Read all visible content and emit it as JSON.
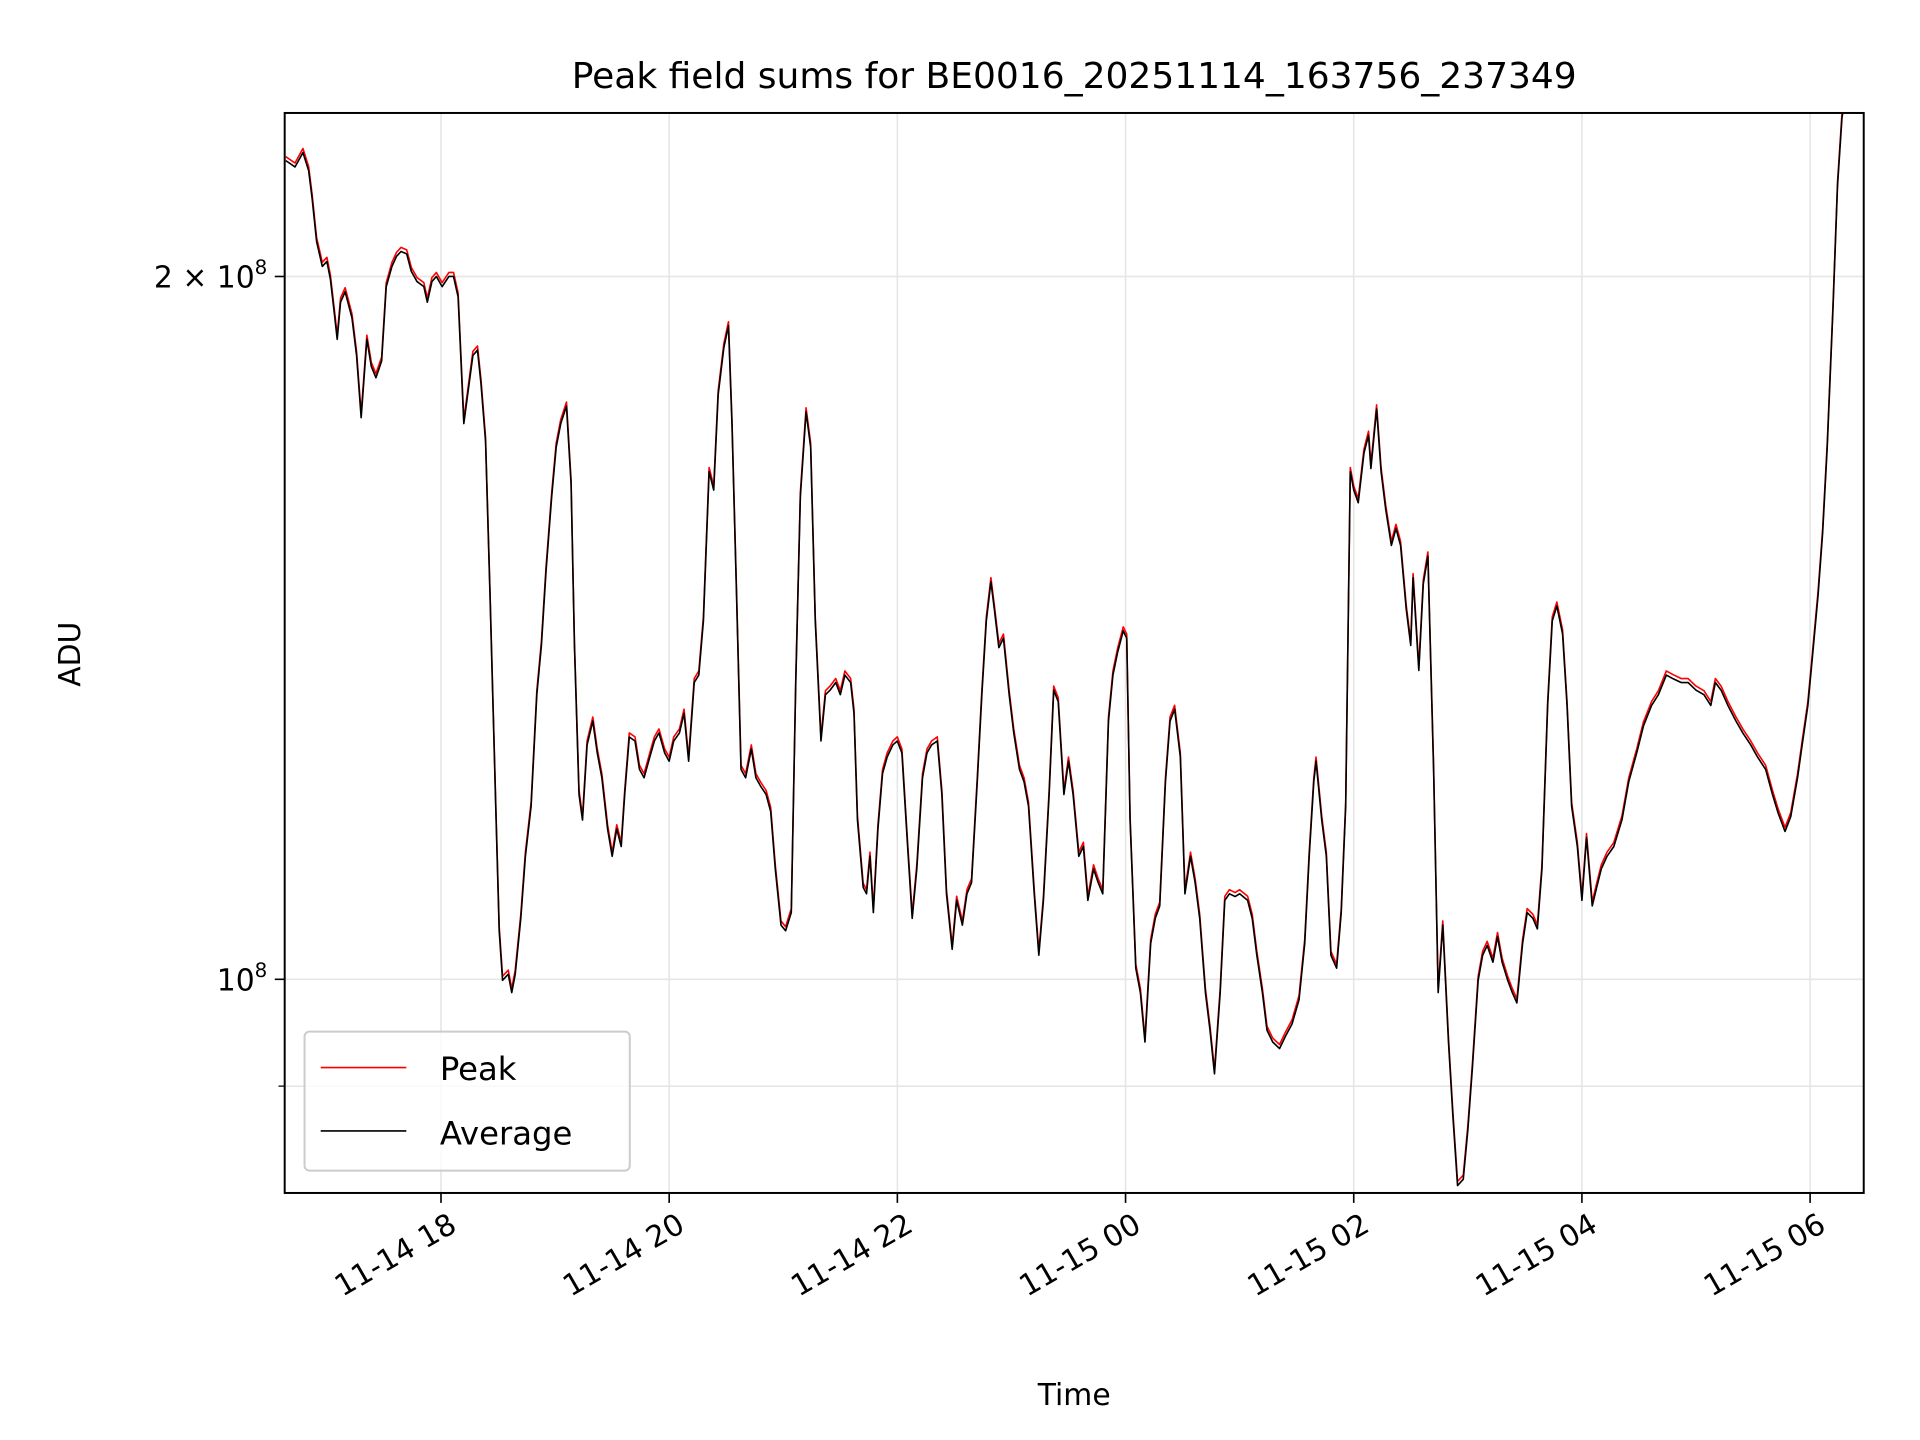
{
  "chart_data": {
    "type": "line",
    "title": "Peak field sums for BE0016_20251114_163756_237349",
    "xlabel": "Time",
    "ylabel": "ADU",
    "x_unit": "hours since 2025-11-14 00:00",
    "y_unit": "ADU (x1e8)",
    "yscale": "log",
    "xlim": [
      16.63,
      30.47
    ],
    "ylim": [
      0.81,
      2.35
    ],
    "grid": true,
    "legend_position": "lower-left",
    "x_ticks": [
      {
        "value": 18,
        "label": "11-14 18"
      },
      {
        "value": 20,
        "label": "11-14 20"
      },
      {
        "value": 22,
        "label": "11-14 22"
      },
      {
        "value": 24,
        "label": "11-15 00"
      },
      {
        "value": 26,
        "label": "11-15 02"
      },
      {
        "value": 28,
        "label": "11-15 04"
      },
      {
        "value": 30,
        "label": "11-15 06"
      }
    ],
    "y_ticks": [
      {
        "value": 1,
        "base": "10",
        "exp": "8",
        "mult": ""
      },
      {
        "value": 2,
        "base": "10",
        "exp": "8",
        "mult": "2 × "
      }
    ],
    "y_minor_ticks": [
      0.9
    ],
    "series": [
      {
        "name": "Peak",
        "color": "#ff0000",
        "ratio_to_average": 1.004
      },
      {
        "name": "Average",
        "color": "#000000",
        "ratio_to_average": 1.0
      }
    ],
    "average": [
      [
        16.64,
        2.242
      ],
      [
        16.72,
        2.228
      ],
      [
        16.79,
        2.26
      ],
      [
        16.84,
        2.22
      ],
      [
        16.87,
        2.16
      ],
      [
        16.91,
        2.07
      ],
      [
        16.96,
        2.02
      ],
      [
        17.0,
        2.03
      ],
      [
        17.03,
        1.995
      ],
      [
        17.07,
        1.92
      ],
      [
        17.09,
        1.88
      ],
      [
        17.12,
        1.95
      ],
      [
        17.16,
        1.97
      ],
      [
        17.22,
        1.92
      ],
      [
        17.26,
        1.85
      ],
      [
        17.3,
        1.74
      ],
      [
        17.35,
        1.88
      ],
      [
        17.39,
        1.83
      ],
      [
        17.43,
        1.81
      ],
      [
        17.48,
        1.84
      ],
      [
        17.52,
        1.98
      ],
      [
        17.57,
        2.02
      ],
      [
        17.61,
        2.04
      ],
      [
        17.65,
        2.05
      ],
      [
        17.7,
        2.045
      ],
      [
        17.74,
        2.01
      ],
      [
        17.79,
        1.99
      ],
      [
        17.85,
        1.98
      ],
      [
        17.88,
        1.95
      ],
      [
        17.92,
        1.99
      ],
      [
        17.96,
        2.0
      ],
      [
        18.01,
        1.98
      ],
      [
        18.07,
        2.0
      ],
      [
        18.11,
        2.0
      ],
      [
        18.15,
        1.96
      ],
      [
        18.2,
        1.73
      ],
      [
        18.24,
        1.79
      ],
      [
        18.28,
        1.85
      ],
      [
        18.32,
        1.86
      ],
      [
        18.35,
        1.8
      ],
      [
        18.39,
        1.7
      ],
      [
        18.43,
        1.46
      ],
      [
        18.48,
        1.186
      ],
      [
        18.51,
        1.049
      ],
      [
        18.54,
        0.999
      ],
      [
        18.59,
        1.005
      ],
      [
        18.62,
        0.987
      ],
      [
        18.65,
        1.005
      ],
      [
        18.7,
        1.062
      ],
      [
        18.74,
        1.129
      ],
      [
        18.79,
        1.186
      ],
      [
        18.84,
        1.324
      ],
      [
        18.88,
        1.39
      ],
      [
        18.92,
        1.495
      ],
      [
        18.97,
        1.61
      ],
      [
        19.01,
        1.69
      ],
      [
        19.05,
        1.73
      ],
      [
        19.1,
        1.76
      ],
      [
        19.14,
        1.63
      ],
      [
        19.17,
        1.39
      ],
      [
        19.21,
        1.2
      ],
      [
        19.24,
        1.17
      ],
      [
        19.28,
        1.26
      ],
      [
        19.33,
        1.29
      ],
      [
        19.37,
        1.25
      ],
      [
        19.41,
        1.22
      ],
      [
        19.46,
        1.16
      ],
      [
        19.5,
        1.129
      ],
      [
        19.54,
        1.16
      ],
      [
        19.58,
        1.14
      ],
      [
        19.61,
        1.2
      ],
      [
        19.65,
        1.27
      ],
      [
        19.7,
        1.265
      ],
      [
        19.74,
        1.23
      ],
      [
        19.78,
        1.22
      ],
      [
        19.83,
        1.245
      ],
      [
        19.87,
        1.265
      ],
      [
        19.91,
        1.275
      ],
      [
        19.96,
        1.25
      ],
      [
        20.0,
        1.24
      ],
      [
        20.04,
        1.265
      ],
      [
        20.09,
        1.275
      ],
      [
        20.13,
        1.3
      ],
      [
        20.17,
        1.24
      ],
      [
        20.22,
        1.34
      ],
      [
        20.26,
        1.35
      ],
      [
        20.3,
        1.424
      ],
      [
        20.35,
        1.65
      ],
      [
        20.39,
        1.62
      ],
      [
        20.43,
        1.78
      ],
      [
        20.48,
        1.865
      ],
      [
        20.52,
        1.905
      ],
      [
        20.55,
        1.73
      ],
      [
        20.59,
        1.46
      ],
      [
        20.63,
        1.23
      ],
      [
        20.67,
        1.22
      ],
      [
        20.72,
        1.255
      ],
      [
        20.76,
        1.22
      ],
      [
        20.8,
        1.21
      ],
      [
        20.85,
        1.2
      ],
      [
        20.89,
        1.18
      ],
      [
        20.93,
        1.115
      ],
      [
        20.98,
        1.055
      ],
      [
        21.02,
        1.049
      ],
      [
        21.07,
        1.068
      ],
      [
        21.11,
        1.34
      ],
      [
        21.15,
        1.61
      ],
      [
        21.2,
        1.75
      ],
      [
        21.24,
        1.69
      ],
      [
        21.28,
        1.424
      ],
      [
        21.33,
        1.265
      ],
      [
        21.37,
        1.324
      ],
      [
        21.41,
        1.33
      ],
      [
        21.46,
        1.34
      ],
      [
        21.5,
        1.324
      ],
      [
        21.54,
        1.35
      ],
      [
        21.59,
        1.34
      ],
      [
        21.62,
        1.3
      ],
      [
        21.65,
        1.17
      ],
      [
        21.7,
        1.095
      ],
      [
        21.73,
        1.088
      ],
      [
        21.76,
        1.129
      ],
      [
        21.79,
        1.068
      ],
      [
        21.83,
        1.16
      ],
      [
        21.87,
        1.225
      ],
      [
        21.91,
        1.245
      ],
      [
        21.96,
        1.26
      ],
      [
        22.0,
        1.265
      ],
      [
        22.04,
        1.25
      ],
      [
        22.09,
        1.14
      ],
      [
        22.13,
        1.062
      ],
      [
        22.17,
        1.115
      ],
      [
        22.22,
        1.22
      ],
      [
        22.26,
        1.25
      ],
      [
        22.3,
        1.26
      ],
      [
        22.35,
        1.265
      ],
      [
        22.39,
        1.2
      ],
      [
        22.43,
        1.088
      ],
      [
        22.48,
        1.03
      ],
      [
        22.52,
        1.081
      ],
      [
        22.57,
        1.055
      ],
      [
        22.61,
        1.088
      ],
      [
        22.65,
        1.1
      ],
      [
        22.7,
        1.215
      ],
      [
        22.74,
        1.324
      ],
      [
        22.78,
        1.424
      ],
      [
        22.82,
        1.48
      ],
      [
        22.85,
        1.44
      ],
      [
        22.89,
        1.387
      ],
      [
        22.93,
        1.4
      ],
      [
        22.98,
        1.324
      ],
      [
        23.02,
        1.275
      ],
      [
        23.07,
        1.23
      ],
      [
        23.11,
        1.215
      ],
      [
        23.15,
        1.186
      ],
      [
        23.2,
        1.088
      ],
      [
        23.24,
        1.024
      ],
      [
        23.28,
        1.081
      ],
      [
        23.33,
        1.2
      ],
      [
        23.37,
        1.33
      ],
      [
        23.41,
        1.315
      ],
      [
        23.46,
        1.2
      ],
      [
        23.5,
        1.24
      ],
      [
        23.54,
        1.2
      ],
      [
        23.59,
        1.129
      ],
      [
        23.63,
        1.14
      ],
      [
        23.67,
        1.081
      ],
      [
        23.72,
        1.115
      ],
      [
        23.76,
        1.1
      ],
      [
        23.8,
        1.088
      ],
      [
        23.85,
        1.29
      ],
      [
        23.89,
        1.35
      ],
      [
        23.93,
        1.38
      ],
      [
        23.98,
        1.41
      ],
      [
        24.01,
        1.4
      ],
      [
        24.04,
        1.17
      ],
      [
        24.09,
        1.011
      ],
      [
        24.13,
        0.987
      ],
      [
        24.17,
        0.94
      ],
      [
        24.22,
        1.036
      ],
      [
        24.26,
        1.062
      ],
      [
        24.3,
        1.075
      ],
      [
        24.35,
        1.215
      ],
      [
        24.39,
        1.29
      ],
      [
        24.43,
        1.305
      ],
      [
        24.48,
        1.245
      ],
      [
        24.52,
        1.088
      ],
      [
        24.57,
        1.129
      ],
      [
        24.61,
        1.1
      ],
      [
        24.65,
        1.062
      ],
      [
        24.7,
        0.987
      ],
      [
        24.74,
        0.951
      ],
      [
        24.78,
        0.911
      ],
      [
        24.83,
        0.987
      ],
      [
        24.87,
        1.081
      ],
      [
        24.91,
        1.088
      ],
      [
        24.96,
        1.085
      ],
      [
        25.0,
        1.088
      ],
      [
        25.07,
        1.081
      ],
      [
        25.11,
        1.062
      ],
      [
        25.15,
        1.024
      ],
      [
        25.2,
        0.987
      ],
      [
        25.24,
        0.951
      ],
      [
        25.29,
        0.94
      ],
      [
        25.35,
        0.934
      ],
      [
        25.4,
        0.945
      ],
      [
        25.46,
        0.957
      ],
      [
        25.52,
        0.98
      ],
      [
        25.57,
        1.036
      ],
      [
        25.61,
        1.129
      ],
      [
        25.65,
        1.215
      ],
      [
        25.67,
        1.24
      ],
      [
        25.72,
        1.17
      ],
      [
        25.76,
        1.129
      ],
      [
        25.8,
        1.024
      ],
      [
        25.85,
        1.011
      ],
      [
        25.89,
        1.068
      ],
      [
        25.93,
        1.186
      ],
      [
        25.97,
        1.65
      ],
      [
        26.0,
        1.62
      ],
      [
        26.04,
        1.6
      ],
      [
        26.09,
        1.68
      ],
      [
        26.13,
        1.71
      ],
      [
        26.15,
        1.655
      ],
      [
        26.2,
        1.755
      ],
      [
        26.24,
        1.65
      ],
      [
        26.28,
        1.59
      ],
      [
        26.33,
        1.534
      ],
      [
        26.37,
        1.56
      ],
      [
        26.41,
        1.534
      ],
      [
        26.46,
        1.44
      ],
      [
        26.5,
        1.39
      ],
      [
        26.52,
        1.486
      ],
      [
        26.57,
        1.356
      ],
      [
        26.61,
        1.477
      ],
      [
        26.65,
        1.518
      ],
      [
        26.7,
        1.23
      ],
      [
        26.74,
        0.987
      ],
      [
        26.78,
        1.055
      ],
      [
        26.83,
        0.94
      ],
      [
        26.87,
        0.873
      ],
      [
        26.91,
        0.816
      ],
      [
        26.96,
        0.821
      ],
      [
        27.0,
        0.862
      ],
      [
        27.04,
        0.917
      ],
      [
        27.09,
        0.999
      ],
      [
        27.13,
        1.024
      ],
      [
        27.17,
        1.034
      ],
      [
        27.22,
        1.017
      ],
      [
        27.26,
        1.043
      ],
      [
        27.3,
        1.017
      ],
      [
        27.35,
        0.999
      ],
      [
        27.39,
        0.987
      ],
      [
        27.43,
        0.977
      ],
      [
        27.48,
        1.036
      ],
      [
        27.52,
        1.068
      ],
      [
        27.57,
        1.062
      ],
      [
        27.61,
        1.051
      ],
      [
        27.65,
        1.115
      ],
      [
        27.7,
        1.31
      ],
      [
        27.74,
        1.424
      ],
      [
        27.78,
        1.445
      ],
      [
        27.83,
        1.406
      ],
      [
        27.87,
        1.31
      ],
      [
        27.91,
        1.186
      ],
      [
        27.96,
        1.14
      ],
      [
        28.0,
        1.081
      ],
      [
        28.04,
        1.15
      ],
      [
        28.09,
        1.075
      ],
      [
        28.13,
        1.095
      ],
      [
        28.17,
        1.115
      ],
      [
        28.22,
        1.129
      ],
      [
        28.28,
        1.14
      ],
      [
        28.35,
        1.17
      ],
      [
        28.41,
        1.215
      ],
      [
        28.48,
        1.25
      ],
      [
        28.54,
        1.284
      ],
      [
        28.61,
        1.31
      ],
      [
        28.67,
        1.324
      ],
      [
        28.74,
        1.35
      ],
      [
        28.8,
        1.345
      ],
      [
        28.87,
        1.34
      ],
      [
        28.93,
        1.34
      ],
      [
        29.0,
        1.33
      ],
      [
        29.07,
        1.324
      ],
      [
        29.13,
        1.31
      ],
      [
        29.17,
        1.34
      ],
      [
        29.22,
        1.33
      ],
      [
        29.28,
        1.31
      ],
      [
        29.35,
        1.29
      ],
      [
        29.41,
        1.275
      ],
      [
        29.48,
        1.26
      ],
      [
        29.54,
        1.245
      ],
      [
        29.61,
        1.23
      ],
      [
        29.67,
        1.2
      ],
      [
        29.72,
        1.178
      ],
      [
        29.78,
        1.157
      ],
      [
        29.83,
        1.174
      ],
      [
        29.89,
        1.22
      ],
      [
        29.93,
        1.26
      ],
      [
        29.98,
        1.31
      ],
      [
        30.02,
        1.373
      ],
      [
        30.07,
        1.46
      ],
      [
        30.11,
        1.553
      ],
      [
        30.15,
        1.69
      ],
      [
        30.2,
        1.935
      ],
      [
        30.24,
        2.187
      ],
      [
        30.28,
        2.34
      ],
      [
        30.32,
        2.4
      ]
    ]
  }
}
